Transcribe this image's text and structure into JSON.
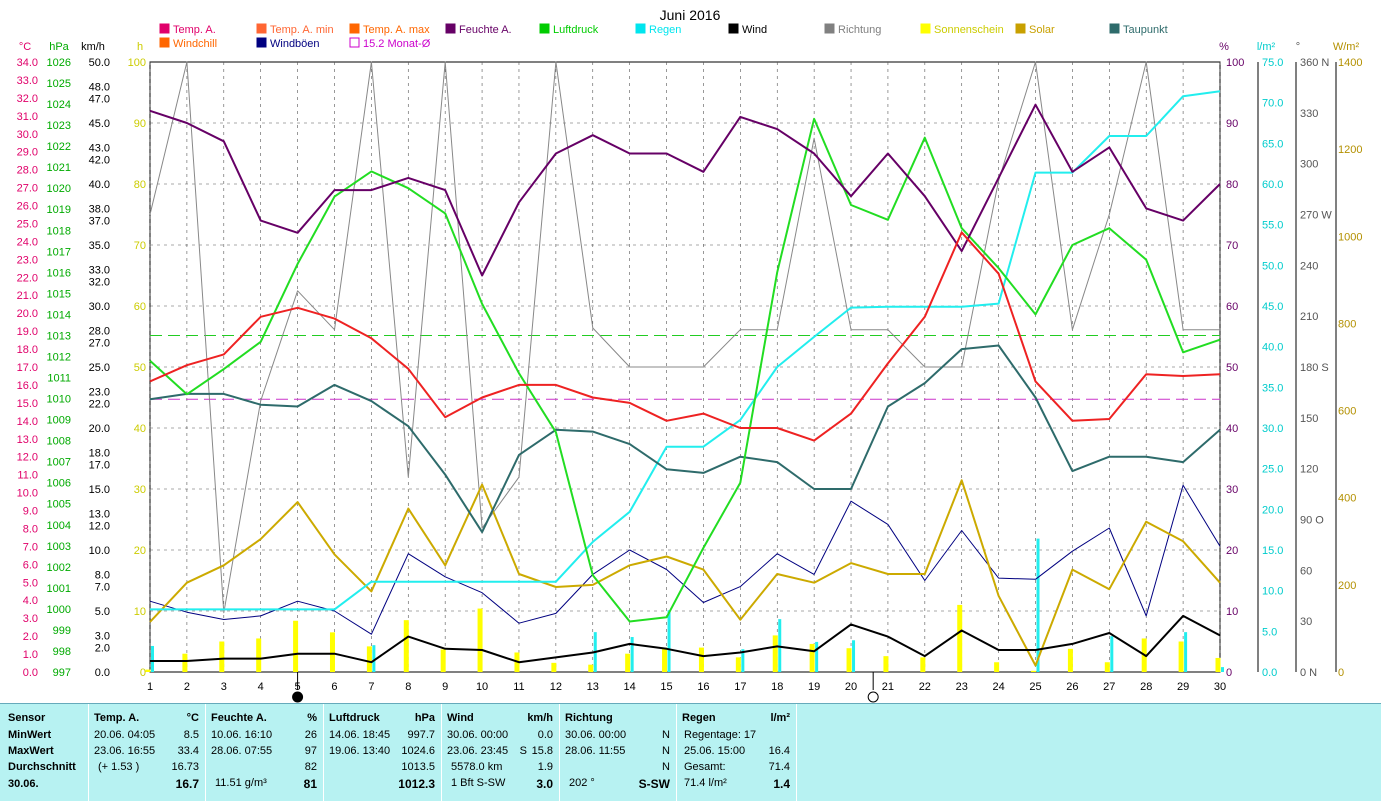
{
  "chart_data": {
    "type": "line",
    "title": "Juni 2016",
    "days": [
      1,
      2,
      3,
      4,
      5,
      6,
      7,
      8,
      9,
      10,
      11,
      12,
      13,
      14,
      15,
      16,
      17,
      18,
      19,
      20,
      21,
      22,
      23,
      24,
      25,
      26,
      27,
      28,
      29,
      30
    ],
    "legend": [
      {
        "label": "Temp. A.",
        "color": "#e0006a",
        "row": 0,
        "col": 0
      },
      {
        "label": "Temp. A. min",
        "color": "#ff6633",
        "row": 0,
        "col": 1
      },
      {
        "label": "Temp. A. max",
        "color": "#ff6600",
        "row": 0,
        "col": 2
      },
      {
        "label": "Feuchte A.",
        "color": "#660066",
        "row": 0,
        "col": 3
      },
      {
        "label": "Luftdruck",
        "color": "#00cc00",
        "row": 0,
        "col": 4
      },
      {
        "label": "Regen",
        "color": "#00e5ee",
        "row": 0,
        "col": 5
      },
      {
        "label": "Wind",
        "color": "#000000",
        "row": 0,
        "col": 6
      },
      {
        "label": "Richtung",
        "color": "#808080",
        "row": 0,
        "col": 7
      },
      {
        "label": "Sonnenschein",
        "color": "#ffff00",
        "row": 0,
        "col": 8
      },
      {
        "label": "Solar",
        "color": "#c8a000",
        "row": 0,
        "col": 9
      },
      {
        "label": "Taupunkt",
        "color": "#2e6b6b",
        "row": 0,
        "col": 10
      },
      {
        "label": "Windchill",
        "color": "#ff6600",
        "row": 1,
        "col": 0
      },
      {
        "label": "Windböen",
        "color": "#000080",
        "row": 1,
        "col": 1
      },
      {
        "label": "15.2 Monat-Ø",
        "color": "#cc00cc",
        "row": 1,
        "col": 2,
        "hollow": true
      }
    ],
    "left_axis_units": {
      "temp": "°C",
      "pressure": "hPa",
      "wind": "km/h",
      "sun": "h"
    },
    "right_axis_units": {
      "humidity": "%",
      "rain": "l/m²",
      "direction": "°",
      "solar": "W/m²"
    },
    "temp_ticks": [
      "34.0",
      "33.0",
      "32.0",
      "31.0",
      "30.0",
      "29.0",
      "28.0",
      "27.0",
      "26.0",
      "25.0",
      "24.0",
      "23.0",
      "22.0",
      "21.0",
      "20.0",
      "19.0",
      "18.0",
      "17.0",
      "16.0",
      "15.0",
      "14.0",
      "13.0",
      "12.0",
      "11.0",
      "10.0",
      "9.0",
      "8.0",
      "7.0",
      "6.0",
      "5.0",
      "4.0",
      "3.0",
      "2.0",
      "1.0",
      "0.0"
    ],
    "pressure_ticks": [
      "1026",
      "1025",
      "1024",
      "1023",
      "1022",
      "1021",
      "1020",
      "1019",
      "1018",
      "1017",
      "1016",
      "1015",
      "1014",
      "1013",
      "1012",
      "1011",
      "1010",
      "1009",
      "1008",
      "1007",
      "1006",
      "1005",
      "1004",
      "1003",
      "1002",
      "1001",
      "1000",
      "999",
      "998",
      "997"
    ],
    "wind_ticks": [
      50.0,
      48.0,
      47.0,
      45.0,
      43.0,
      42.0,
      40.0,
      38.0,
      37.0,
      35.0,
      33.0,
      32.0,
      30.0,
      28.0,
      27.0,
      25.0,
      23.0,
      22.0,
      20.0,
      18.0,
      17.0,
      15.0,
      13.0,
      12.0,
      10.0,
      8.0,
      7.0,
      5.0,
      3.0,
      2.0,
      0.0
    ],
    "wind_tick_labels": [
      "50.0",
      "48.0",
      "47.0",
      "45.0",
      "43.0",
      "42.0",
      "40.0",
      "38.0",
      "37.0",
      "35.0",
      "33.0",
      "32.0",
      "30.0",
      "28.0",
      "27.0",
      "25.0",
      "23.0",
      "22.0",
      "20.0",
      "18.0",
      "17.0",
      "15.0",
      "13.0",
      "12.0",
      "10.0",
      "8.0",
      "7.0",
      "5.0",
      "3.0",
      "2.0",
      "0.0"
    ],
    "sun_ticks": [
      "100",
      "90",
      "80",
      "70",
      "60",
      "50",
      "40",
      "30",
      "20",
      "10",
      "0"
    ],
    "humidity_ticks": [
      "100",
      "90",
      "80",
      "70",
      "60",
      "50",
      "40",
      "30",
      "20",
      "10",
      "0"
    ],
    "rain_ticks": [
      "75.0",
      "70.0",
      "65.0",
      "60.0",
      "55.0",
      "50.0",
      "45.0",
      "40.0",
      "35.0",
      "30.0",
      "25.0",
      "20.0",
      "15.0",
      "10.0",
      "5.0",
      "0.0"
    ],
    "direction_ticks": [
      "360 N",
      "330",
      "300",
      "270 W",
      "240",
      "210",
      "180 S",
      "150",
      "120",
      "90 O",
      "60",
      "30",
      "0 N"
    ],
    "solar_ticks": [
      "1400",
      "1200",
      "1000",
      "800",
      "600",
      "400",
      "200",
      "0"
    ],
    "temp_range": [
      0,
      34
    ],
    "humidity_range": [
      0,
      100
    ],
    "rain_range": [
      0,
      75
    ],
    "direction_range": [
      0,
      360
    ],
    "solar_range": [
      0,
      1400
    ],
    "wind_range": [
      0,
      50
    ],
    "pressure_range": [
      997,
      1026
    ],
    "sun_range": [
      0,
      100
    ],
    "series": [
      {
        "name": "Temp. A.",
        "axis": "temp",
        "color": "#ee2222",
        "width": 2,
        "values": [
          16.2,
          17.1,
          17.7,
          19.8,
          20.3,
          19.7,
          18.6,
          16.9,
          14.2,
          15.3,
          16.0,
          16.0,
          15.3,
          15.0,
          14.0,
          14.4,
          13.6,
          13.6,
          12.9,
          14.4,
          17.2,
          19.8,
          24.5,
          22.2,
          16.2,
          14.0,
          14.1,
          16.6,
          16.5,
          16.6
        ]
      },
      {
        "name": "Feuchte A.",
        "axis": "humidity",
        "color": "#660066",
        "width": 2,
        "values": [
          92,
          90,
          87,
          74,
          72,
          79,
          79,
          81,
          79,
          65,
          77,
          85,
          88,
          85,
          85,
          82,
          91,
          89,
          85,
          78,
          85,
          78,
          69,
          81,
          93,
          82,
          86,
          76,
          74,
          80
        ]
      },
      {
        "name": "Luftdruck",
        "axis": "pressure",
        "color": "#22dd22",
        "width": 2,
        "values": [
          1011.8,
          1010.2,
          1011.4,
          1012.7,
          1016.4,
          1019.6,
          1020.8,
          1020.0,
          1018.8,
          1014.5,
          1011.2,
          1008.4,
          1001.6,
          999.4,
          999.6,
          1002.9,
          1006.0,
          1016.0,
          1023.3,
          1019.2,
          1018.5,
          1022.4,
          1018.1,
          1016.2,
          1014.0,
          1017.3,
          1018.1,
          1016.6,
          1012.2,
          1012.8
        ]
      },
      {
        "name": "Regen",
        "axis": "rain",
        "color": "#22eeee",
        "width": 2,
        "values": [
          7.7,
          7.7,
          7.7,
          7.7,
          7.7,
          7.7,
          11.1,
          11.1,
          11.1,
          11.1,
          11.1,
          11.1,
          16.0,
          19.7,
          27.7,
          27.7,
          31.0,
          37.5,
          41.2,
          44.8,
          44.9,
          44.9,
          44.9,
          45.3,
          61.4,
          61.4,
          65.9,
          65.9,
          70.8,
          71.4
        ]
      },
      {
        "name": "Taupunkt",
        "axis": "temp",
        "color": "#2e6b6b",
        "width": 2,
        "values": [
          15.2,
          15.5,
          15.5,
          14.9,
          14.8,
          16.0,
          15.1,
          13.7,
          11.0,
          7.8,
          12.1,
          13.5,
          13.4,
          12.7,
          11.3,
          11.1,
          12.0,
          11.7,
          10.2,
          10.2,
          14.8,
          16.1,
          18.0,
          18.2,
          15.3,
          11.2,
          12.0,
          12.0,
          11.7,
          13.5
        ]
      },
      {
        "name": "Solar",
        "axis": "solar",
        "color": "#ccaa00",
        "width": 2,
        "values": [
          115,
          205,
          245,
          305,
          390,
          270,
          185,
          375,
          245,
          430,
          225,
          195,
          200,
          245,
          265,
          235,
          120,
          225,
          205,
          250,
          225,
          225,
          440,
          175,
          15,
          235,
          190,
          345,
          300,
          205
        ]
      },
      {
        "name": "Wind",
        "axis": "wind",
        "color": "#000000",
        "width": 2,
        "values": [
          0.9,
          0.9,
          1.1,
          1.1,
          1.5,
          1.5,
          0.8,
          2.9,
          1.9,
          1.8,
          0.8,
          1.2,
          1.6,
          2.3,
          1.9,
          1.3,
          1.6,
          2.1,
          1.7,
          3.9,
          2.9,
          1.3,
          3.4,
          1.8,
          1.8,
          2.3,
          3.2,
          1.3,
          4.6,
          3.0
        ]
      },
      {
        "name": "Windböen",
        "axis": "wind",
        "color": "#000080",
        "width": 1,
        "values": [
          5.8,
          4.9,
          4.3,
          4.6,
          5.8,
          5.0,
          3.1,
          9.7,
          7.8,
          6.5,
          4.0,
          4.8,
          8.0,
          10.0,
          8.4,
          5.7,
          7.0,
          9.7,
          8.0,
          14.0,
          12.1,
          7.5,
          11.6,
          7.7,
          7.6,
          9.9,
          11.8,
          4.6,
          15.3,
          10.3
        ]
      },
      {
        "name": "Richtung",
        "axis": "direction",
        "color": "#888888",
        "width": 1,
        "values": [
          270,
          360,
          35,
          160,
          225,
          202,
          360,
          115,
          360,
          85,
          115,
          360,
          203,
          180,
          180,
          180,
          202,
          202,
          315,
          202,
          202,
          180,
          180,
          290,
          360,
          202,
          270,
          360,
          202,
          202
        ]
      }
    ],
    "sunshine": [
      0.4,
      3.0,
      5.0,
      5.5,
      8.4,
      6.5,
      4.2,
      8.5,
      3.7,
      10.4,
      3.2,
      1.5,
      1.2,
      3.0,
      4.0,
      4.0,
      2.4,
      6.0,
      4.6,
      3.9,
      2.6,
      2.4,
      11.0,
      1.6,
      0.2,
      3.8,
      1.6,
      5.5,
      5.0,
      2.3
    ],
    "rain_bars": [
      3.2,
      0,
      0,
      0,
      0,
      0,
      3.3,
      0,
      0,
      0,
      0,
      0,
      4.9,
      4.3,
      7.6,
      0,
      2.8,
      6.5,
      3.7,
      3.9,
      0,
      0,
      0,
      0,
      16.4,
      0,
      4.4,
      0,
      4.9,
      0.6
    ],
    "reference_lines": [
      {
        "axis": "pressure",
        "value": 1013.0,
        "color": "#22cc22"
      },
      {
        "axis": "temp",
        "value": 15.2,
        "color": "#cc33cc"
      }
    ],
    "moon_markers": [
      {
        "day": 5,
        "phase": "new"
      },
      {
        "day": 20.6,
        "phase": "full"
      }
    ]
  },
  "stats": {
    "sensor": {
      "title": "Sensor",
      "rows": [
        "MinWert",
        "MaxWert",
        "Durchschnitt",
        "30.06."
      ]
    },
    "temp": {
      "title": "Temp. A.",
      "unit": "°C",
      "min_time": "20.06.  04:05",
      "min_val": "8.5",
      "max_time": "23.06.  16:55",
      "max_val": "33.4",
      "avg_note": "(+ 1.53 )",
      "avg_val": "16.73",
      "cur_val": "16.7"
    },
    "humidity": {
      "title": "Feuchte A.",
      "unit": "%",
      "min_time": "10.06.  16:10",
      "min_val": "26",
      "max_time": "28.06.  07:55",
      "max_val": "97",
      "avg_val": "82",
      "cur_note": "11.51 g/m³",
      "cur_val": "81"
    },
    "pressure": {
      "title": "Luftdruck",
      "unit": "hPa",
      "min_time": "14.06.  18:45",
      "min_val": "997.7",
      "max_time": "19.06.  13:40",
      "max_val": "1024.6",
      "avg_val": "1013.5",
      "cur_val": "1012.3"
    },
    "wind": {
      "title": "Wind",
      "unit": "km/h",
      "min_time": "30.06.  00:00",
      "min_val": "0.0",
      "max_time": "23.06.  23:45",
      "max_dir": "S",
      "max_val": "15.8",
      "avg_note": "5578.0 km",
      "avg_val": "1.9",
      "cur_note": "1 Bft S-SW",
      "cur_val": "3.0"
    },
    "direction": {
      "title": "Richtung",
      "min_time": "30.06.  00:00",
      "min_val": "N",
      "max_time": "28.06.  11:55",
      "max_val": "N",
      "avg_val": "N",
      "cur_note": "202 °",
      "cur_val": "S-SW"
    },
    "rain": {
      "title": "Regen",
      "unit": "l/m²",
      "days_label": "Regentage: 17",
      "max_time": "25.06.  15:00",
      "max_val": "16.4",
      "total_label": "Gesamt:",
      "total_val": "71.4",
      "cur_note": "71.4 l/m²",
      "cur_val": "1.4"
    }
  }
}
